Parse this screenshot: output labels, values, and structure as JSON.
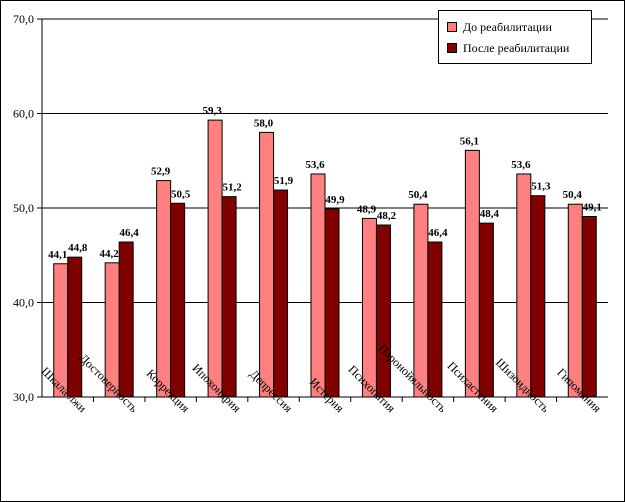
{
  "chart_data": {
    "type": "bar",
    "categories": [
      "Шкала лжи",
      "Достоверность",
      "Коррекция",
      "Ипохондрия",
      "Депрессия",
      "Истерия",
      "Психопатия",
      "Паронойяльность",
      "Психастения",
      "Шизоидность",
      "Гипомания"
    ],
    "series": [
      {
        "name": "До реабилитации",
        "color": "#FF8080",
        "values": [
          44.1,
          44.2,
          52.9,
          59.3,
          58.0,
          53.6,
          48.9,
          50.4,
          56.1,
          53.6,
          50.4
        ]
      },
      {
        "name": "После реабилитации",
        "color": "#800000",
        "values": [
          44.8,
          46.4,
          50.5,
          51.2,
          51.9,
          49.9,
          48.2,
          46.4,
          48.4,
          51.3,
          49.1
        ]
      }
    ],
    "value_labels": [
      [
        "44,1",
        "44,2",
        "52,9",
        "59,3",
        "58,0",
        "53,6",
        "48,9",
        "50,4",
        "56,1",
        "53,6",
        "50,4"
      ],
      [
        "44,8",
        "46,4",
        "50,5",
        "51,2",
        "51,9",
        "49,9",
        "48,2",
        "46,4",
        "48,4",
        "51,3",
        "49,1"
      ]
    ],
    "ylim": [
      30,
      70
    ],
    "y_ticks": [
      30,
      40,
      50,
      60,
      70
    ],
    "y_tick_labels": [
      "30,0",
      "40,0",
      "50,0",
      "60,0",
      "70,0"
    ],
    "grid": true,
    "legend_position": "top-right",
    "title": "",
    "xlabel": "",
    "ylabel": ""
  }
}
